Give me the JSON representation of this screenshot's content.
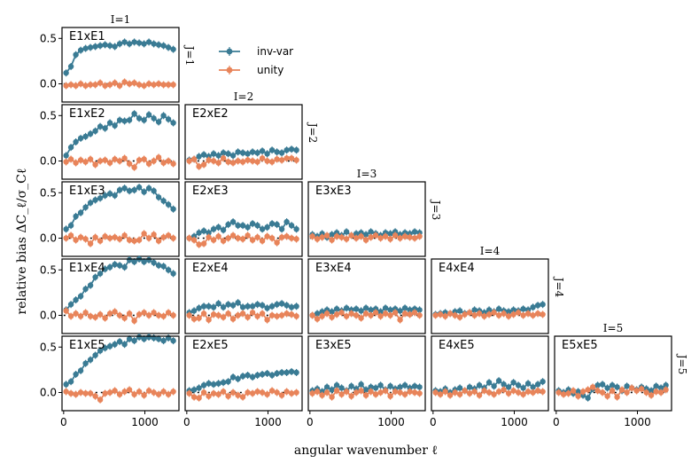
{
  "chart_data": {
    "type": "scatter",
    "xlabel": "angular wavenumber ℓ",
    "ylabel": "relative bias ΔC_ℓ/σ_Cℓ",
    "xlim": [
      -20,
      1420
    ],
    "ylim": [
      -0.2,
      0.62
    ],
    "x_ticks": [
      0,
      1000
    ],
    "x_tick_labels": [
      "0",
      "1000"
    ],
    "y_ticks": [
      0.0,
      0.5
    ],
    "y_tick_labels": [
      "0.0",
      "0.5"
    ],
    "col_labels": [
      "I=1",
      "I=2",
      "I=3",
      "I=4",
      "I=5"
    ],
    "row_labels": [
      "J=1",
      "J=2",
      "J=3",
      "J=4",
      "J=5"
    ],
    "legend": {
      "placement": "top-center",
      "entries": [
        {
          "name": "inv-var",
          "color": "#3a7b94"
        },
        {
          "name": "unity",
          "color": "#e8845a"
        }
      ]
    },
    "x": [
      30,
      90,
      150,
      210,
      270,
      330,
      390,
      450,
      510,
      570,
      630,
      690,
      750,
      810,
      870,
      930,
      990,
      1050,
      1110,
      1170,
      1230,
      1290,
      1350
    ],
    "panels": [
      {
        "label": "E1xE1",
        "row": 0,
        "col": 0,
        "series": [
          {
            "name": "inv-var",
            "values": [
              0.12,
              0.19,
              0.32,
              0.37,
              0.39,
              0.4,
              0.41,
              0.42,
              0.43,
              0.42,
              0.41,
              0.44,
              0.46,
              0.44,
              0.46,
              0.45,
              0.44,
              0.46,
              0.44,
              0.43,
              0.42,
              0.4,
              0.38
            ]
          },
          {
            "name": "unity",
            "values": [
              -0.02,
              -0.01,
              -0.02,
              0.0,
              -0.02,
              -0.01,
              -0.01,
              0.01,
              -0.02,
              -0.01,
              0.01,
              -0.02,
              0.02,
              0.0,
              0.01,
              -0.01,
              -0.02,
              0.0,
              -0.01,
              0.0,
              -0.01,
              -0.01,
              -0.01
            ]
          }
        ]
      },
      {
        "label": "E1xE2",
        "row": 1,
        "col": 0,
        "series": [
          {
            "name": "inv-var",
            "values": [
              0.06,
              0.15,
              0.21,
              0.25,
              0.27,
              0.3,
              0.33,
              0.38,
              0.36,
              0.42,
              0.39,
              0.45,
              0.44,
              0.45,
              0.52,
              0.47,
              0.45,
              0.51,
              0.47,
              0.43,
              0.5,
              0.46,
              0.42
            ]
          },
          {
            "name": "unity",
            "values": [
              -0.01,
              0.02,
              -0.02,
              0.01,
              -0.01,
              0.02,
              -0.04,
              0.0,
              0.01,
              -0.02,
              0.02,
              0.0,
              0.03,
              -0.03,
              -0.07,
              0.01,
              0.02,
              -0.03,
              0.0,
              0.04,
              -0.02,
              0.0,
              -0.03
            ]
          }
        ]
      },
      {
        "label": "E1xE3",
        "row": 2,
        "col": 0,
        "series": [
          {
            "name": "inv-var",
            "values": [
              0.1,
              0.14,
              0.24,
              0.28,
              0.34,
              0.39,
              0.42,
              0.44,
              0.47,
              0.49,
              0.47,
              0.53,
              0.55,
              0.52,
              0.53,
              0.56,
              0.51,
              0.55,
              0.52,
              0.45,
              0.41,
              0.37,
              0.32
            ]
          },
          {
            "name": "unity",
            "values": [
              0.0,
              0.03,
              -0.02,
              0.01,
              -0.01,
              -0.06,
              0.01,
              -0.03,
              0.02,
              0.0,
              0.01,
              -0.01,
              0.03,
              -0.02,
              -0.03,
              -0.02,
              0.05,
              0.0,
              0.04,
              -0.03,
              0.01,
              0.03,
              0.0
            ]
          }
        ]
      },
      {
        "label": "E1xE4",
        "row": 3,
        "col": 0,
        "series": [
          {
            "name": "inv-var",
            "values": [
              0.06,
              0.12,
              0.17,
              0.21,
              0.29,
              0.33,
              0.42,
              0.46,
              0.51,
              0.53,
              0.56,
              0.55,
              0.53,
              0.61,
              0.59,
              0.62,
              0.59,
              0.61,
              0.58,
              0.55,
              0.54,
              0.5,
              0.46
            ]
          },
          {
            "name": "unity",
            "values": [
              0.05,
              -0.01,
              0.02,
              -0.01,
              0.03,
              -0.01,
              -0.02,
              0.01,
              -0.03,
              0.02,
              0.04,
              0.0,
              -0.03,
              0.02,
              -0.06,
              0.01,
              0.03,
              0.0,
              0.03,
              0.0,
              -0.01,
              0.03,
              0.0
            ]
          }
        ]
      },
      {
        "label": "E1xE5",
        "row": 4,
        "col": 0,
        "series": [
          {
            "name": "inv-var",
            "values": [
              0.09,
              0.12,
              0.2,
              0.24,
              0.32,
              0.36,
              0.41,
              0.46,
              0.49,
              0.51,
              0.53,
              0.56,
              0.53,
              0.59,
              0.57,
              0.61,
              0.59,
              0.61,
              0.6,
              0.59,
              0.57,
              0.6,
              0.57
            ]
          },
          {
            "name": "unity",
            "values": [
              0.01,
              -0.01,
              -0.02,
              0.0,
              -0.01,
              -0.01,
              -0.04,
              -0.08,
              -0.01,
              0.0,
              0.02,
              -0.02,
              0.01,
              0.03,
              -0.02,
              0.01,
              -0.03,
              0.02,
              0.0,
              -0.02,
              0.01,
              -0.02,
              0.01
            ]
          }
        ]
      },
      {
        "label": "E2xE2",
        "row": 1,
        "col": 1,
        "series": [
          {
            "name": "inv-var",
            "values": [
              0.01,
              0.02,
              0.05,
              0.07,
              0.05,
              0.08,
              0.06,
              0.09,
              0.08,
              0.06,
              0.1,
              0.09,
              0.08,
              0.1,
              0.09,
              0.11,
              0.08,
              0.12,
              0.1,
              0.09,
              0.12,
              0.13,
              0.12
            ]
          },
          {
            "name": "unity",
            "values": [
              0.0,
              0.02,
              -0.06,
              -0.04,
              0.01,
              0.0,
              -0.02,
              0.03,
              -0.01,
              -0.02,
              0.0,
              -0.01,
              0.01,
              0.0,
              -0.01,
              0.03,
              0.0,
              -0.01,
              0.02,
              0.01,
              0.03,
              0.03,
              0.01
            ]
          }
        ]
      },
      {
        "label": "E2xE3",
        "row": 2,
        "col": 1,
        "series": [
          {
            "name": "inv-var",
            "values": [
              0.0,
              0.02,
              0.06,
              0.08,
              0.06,
              0.1,
              0.12,
              0.09,
              0.15,
              0.18,
              0.14,
              0.14,
              0.12,
              0.16,
              0.14,
              0.1,
              0.12,
              0.16,
              0.15,
              0.1,
              0.18,
              0.14,
              0.1
            ]
          },
          {
            "name": "unity",
            "values": [
              0.0,
              -0.02,
              -0.07,
              -0.06,
              0.01,
              -0.02,
              0.02,
              -0.03,
              0.0,
              0.03,
              0.0,
              -0.01,
              0.03,
              -0.02,
              0.01,
              -0.03,
              0.02,
              0.0,
              -0.05,
              0.01,
              0.02,
              0.0,
              -0.01
            ]
          }
        ]
      },
      {
        "label": "E2xE4",
        "row": 3,
        "col": 1,
        "series": [
          {
            "name": "inv-var",
            "values": [
              0.03,
              0.05,
              0.08,
              0.1,
              0.1,
              0.09,
              0.13,
              0.09,
              0.12,
              0.11,
              0.14,
              0.09,
              0.1,
              0.1,
              0.12,
              0.11,
              0.08,
              0.1,
              0.12,
              0.13,
              0.11,
              0.09,
              0.1
            ]
          },
          {
            "name": "unity",
            "values": [
              0.0,
              -0.04,
              -0.03,
              0.02,
              -0.05,
              0.01,
              0.0,
              -0.02,
              0.02,
              -0.04,
              0.0,
              0.02,
              -0.02,
              0.03,
              -0.01,
              0.02,
              -0.05,
              0.0,
              -0.01,
              0.0,
              0.02,
              0.01,
              -0.01
            ]
          }
        ]
      },
      {
        "label": "E2xE5",
        "row": 4,
        "col": 1,
        "series": [
          {
            "name": "inv-var",
            "values": [
              0.02,
              0.03,
              0.05,
              0.08,
              0.1,
              0.09,
              0.1,
              0.11,
              0.12,
              0.17,
              0.15,
              0.18,
              0.19,
              0.17,
              0.19,
              0.2,
              0.21,
              0.19,
              0.21,
              0.22,
              0.22,
              0.23,
              0.22
            ]
          },
          {
            "name": "unity",
            "values": [
              -0.01,
              -0.05,
              -0.06,
              0.0,
              -0.04,
              -0.01,
              -0.02,
              0.01,
              -0.04,
              0.0,
              -0.03,
              -0.05,
              0.0,
              -0.01,
              0.01,
              0.0,
              -0.02,
              0.02,
              0.0,
              -0.03,
              0.01,
              -0.01,
              0.0
            ]
          }
        ]
      },
      {
        "label": "E3xE3",
        "row": 2,
        "col": 2,
        "series": [
          {
            "name": "inv-var",
            "values": [
              0.04,
              0.02,
              0.05,
              0.01,
              0.04,
              0.06,
              0.03,
              0.07,
              0.03,
              0.05,
              0.06,
              0.04,
              0.07,
              0.05,
              0.03,
              0.06,
              0.05,
              0.07,
              0.04,
              0.06,
              0.05,
              0.07,
              0.06
            ]
          },
          {
            "name": "unity",
            "values": [
              0.02,
              -0.01,
              0.01,
              0.03,
              -0.02,
              0.02,
              0.01,
              -0.01,
              0.03,
              0.0,
              0.02,
              -0.02,
              0.01,
              0.03,
              0.0,
              0.02,
              -0.01,
              0.03,
              0.0,
              0.02,
              0.01,
              0.0,
              0.02
            ]
          }
        ]
      },
      {
        "label": "E3xE4",
        "row": 3,
        "col": 2,
        "series": [
          {
            "name": "inv-var",
            "values": [
              0.0,
              0.02,
              0.04,
              0.06,
              0.04,
              0.07,
              0.05,
              0.08,
              0.06,
              0.07,
              0.05,
              0.08,
              0.06,
              0.07,
              0.04,
              0.08,
              0.06,
              0.07,
              0.05,
              0.08,
              0.06,
              0.07,
              0.06
            ]
          },
          {
            "name": "unity",
            "values": [
              0.0,
              -0.04,
              -0.01,
              0.02,
              -0.02,
              0.01,
              0.03,
              -0.01,
              0.02,
              0.0,
              -0.03,
              0.02,
              0.0,
              0.03,
              -0.01,
              0.02,
              0.0,
              0.03,
              -0.05,
              0.02,
              0.01,
              0.03,
              0.0
            ]
          }
        ]
      },
      {
        "label": "E3xE5",
        "row": 4,
        "col": 2,
        "series": [
          {
            "name": "inv-var",
            "values": [
              0.02,
              0.04,
              0.01,
              0.06,
              0.03,
              0.08,
              0.05,
              0.02,
              0.07,
              0.04,
              0.09,
              0.03,
              0.06,
              0.05,
              0.08,
              0.03,
              0.07,
              0.04,
              0.06,
              0.08,
              0.05,
              0.07,
              0.06
            ]
          },
          {
            "name": "unity",
            "values": [
              -0.01,
              0.01,
              -0.03,
              0.0,
              -0.05,
              0.02,
              -0.02,
              0.01,
              -0.04,
              0.0,
              0.02,
              -0.03,
              0.01,
              -0.02,
              0.0,
              0.02,
              -0.04,
              0.01,
              0.0,
              -0.02,
              0.01,
              0.0,
              -0.01
            ]
          }
        ]
      },
      {
        "label": "E4xE4",
        "row": 3,
        "col": 3,
        "series": [
          {
            "name": "inv-var",
            "values": [
              0.01,
              0.02,
              0.03,
              0.02,
              0.04,
              0.05,
              0.02,
              0.03,
              0.06,
              0.05,
              0.03,
              0.06,
              0.04,
              0.07,
              0.05,
              0.04,
              0.06,
              0.05,
              0.07,
              0.06,
              0.09,
              0.11,
              0.12
            ]
          },
          {
            "name": "unity",
            "values": [
              0.0,
              0.01,
              -0.01,
              0.02,
              0.0,
              -0.02,
              0.01,
              0.03,
              0.0,
              0.02,
              -0.01,
              0.01,
              0.03,
              0.0,
              0.02,
              -0.01,
              0.01,
              0.03,
              0.0,
              0.02,
              0.0,
              0.02,
              0.01
            ]
          }
        ]
      },
      {
        "label": "E4xE5",
        "row": 4,
        "col": 3,
        "series": [
          {
            "name": "inv-var",
            "values": [
              0.02,
              0.01,
              0.04,
              0.0,
              0.03,
              0.05,
              0.02,
              0.06,
              0.04,
              0.08,
              0.05,
              0.11,
              0.07,
              0.13,
              0.09,
              0.06,
              0.11,
              0.08,
              0.05,
              0.1,
              0.06,
              0.09,
              0.12
            ]
          },
          {
            "name": "unity",
            "values": [
              0.0,
              -0.02,
              0.01,
              -0.03,
              0.0,
              -0.02,
              0.02,
              -0.01,
              0.01,
              -0.03,
              0.02,
              0.0,
              -0.02,
              0.01,
              0.03,
              -0.01,
              0.02,
              0.0,
              -0.02,
              0.01,
              0.0,
              0.02,
              0.01
            ]
          }
        ]
      },
      {
        "label": "E5xE5",
        "row": 4,
        "col": 4,
        "series": [
          {
            "name": "inv-var",
            "values": [
              0.02,
              0.0,
              0.03,
              -0.01,
              0.01,
              -0.03,
              -0.06,
              0.04,
              0.08,
              0.09,
              0.05,
              0.08,
              0.06,
              0.02,
              0.07,
              0.05,
              0.03,
              0.06,
              0.04,
              0.02,
              0.07,
              0.05,
              0.08
            ]
          },
          {
            "name": "unity",
            "values": [
              0.0,
              -0.02,
              -0.01,
              0.02,
              -0.04,
              0.01,
              0.03,
              0.06,
              0.02,
              0.0,
              -0.04,
              0.02,
              -0.05,
              0.03,
              0.0,
              0.05,
              0.02,
              0.04,
              0.0,
              -0.03,
              0.01,
              0.0,
              0.03
            ]
          }
        ]
      }
    ]
  }
}
